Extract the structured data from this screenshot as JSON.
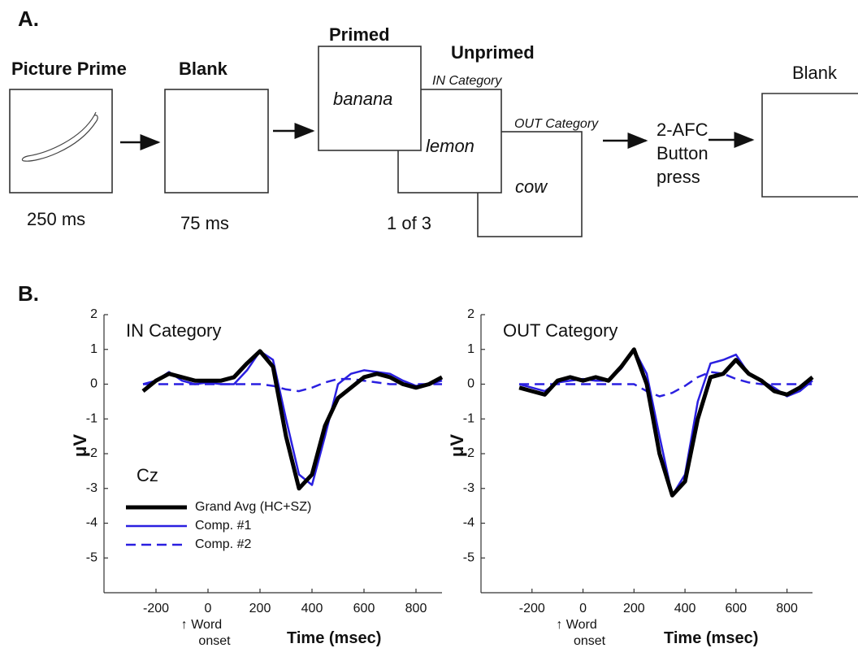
{
  "diagram": {
    "panel_a": "A.",
    "panel_b": "B.",
    "prime": {
      "title": "Picture Prime",
      "time": "250 ms"
    },
    "blank1": {
      "title": "Blank",
      "time": "75 ms"
    },
    "primed": {
      "title": "Primed",
      "word": "banana"
    },
    "unprimed": {
      "title": "Unprimed",
      "in_label": "IN Category",
      "in_word": "lemon",
      "out_label": "OUT Category",
      "out_word": "cow",
      "count": "1 of 3"
    },
    "response": [
      "2-AFC",
      "Button",
      "press"
    ],
    "blank2": {
      "title": "Blank"
    }
  },
  "chart_data": [
    {
      "type": "line",
      "title": "IN Category",
      "label": "Cz",
      "ylabel": "μV",
      "xlabel": "Time (msec)",
      "annotation": [
        "↑ Word",
        "onset"
      ],
      "legend": "lower left",
      "xlim": [
        -400,
        900
      ],
      "ylim": [
        -6,
        2
      ],
      "xticks": [
        -200,
        0,
        200,
        400,
        600,
        800
      ],
      "yticks": [
        2,
        1,
        0,
        -1,
        -2,
        -3,
        -4,
        -5
      ],
      "x": [
        -250,
        -200,
        -150,
        -100,
        -50,
        0,
        50,
        100,
        150,
        200,
        250,
        300,
        350,
        400,
        450,
        500,
        550,
        600,
        650,
        700,
        750,
        800,
        850,
        900
      ],
      "series": [
        {
          "name": "Grand Avg (HC+SZ)",
          "color": "#000000",
          "linestyle": "solid",
          "values": [
            -0.2,
            0.1,
            0.3,
            0.2,
            0.1,
            0.1,
            0.1,
            0.2,
            0.6,
            0.95,
            0.5,
            -1.5,
            -3.0,
            -2.6,
            -1.2,
            -0.4,
            -0.1,
            0.2,
            0.3,
            0.2,
            0.0,
            -0.1,
            0.0,
            0.2
          ]
        },
        {
          "name": "Comp. #1",
          "color": "#2a1fe0",
          "linestyle": "solid",
          "values": [
            0.0,
            0.1,
            0.35,
            0.1,
            0.0,
            0.05,
            0.0,
            0.0,
            0.4,
            0.95,
            0.7,
            -1.0,
            -2.6,
            -2.9,
            -1.5,
            0.0,
            0.3,
            0.4,
            0.35,
            0.3,
            0.1,
            -0.05,
            0.0,
            0.1
          ]
        },
        {
          "name": "Comp. #2",
          "color": "#2a1fe0",
          "linestyle": "dashed",
          "values": [
            0,
            0,
            0,
            0,
            0,
            0,
            0,
            0,
            0,
            0,
            -0.05,
            -0.15,
            -0.2,
            -0.1,
            0.05,
            0.15,
            0.15,
            0.1,
            0.05,
            0,
            0,
            0,
            0,
            0
          ]
        }
      ]
    },
    {
      "type": "line",
      "title": "OUT Category",
      "ylabel": "μV",
      "xlabel": "Time (msec)",
      "annotation": [
        "↑ Word",
        "onset"
      ],
      "xlim": [
        -400,
        900
      ],
      "ylim": [
        -6,
        2
      ],
      "xticks": [
        -200,
        0,
        200,
        400,
        600,
        800
      ],
      "yticks": [
        2,
        1,
        0,
        -1,
        -2,
        -3,
        -4,
        -5
      ],
      "x": [
        -250,
        -200,
        -150,
        -100,
        -50,
        0,
        50,
        100,
        150,
        200,
        250,
        300,
        350,
        400,
        450,
        500,
        550,
        600,
        650,
        700,
        750,
        800,
        850,
        900
      ],
      "series": [
        {
          "color": "#000000",
          "linestyle": "solid",
          "values": [
            -0.1,
            -0.2,
            -0.3,
            0.1,
            0.2,
            0.1,
            0.2,
            0.1,
            0.5,
            1.0,
            0.0,
            -2.0,
            -3.2,
            -2.8,
            -1.0,
            0.2,
            0.3,
            0.7,
            0.3,
            0.1,
            -0.2,
            -0.3,
            -0.1,
            0.2
          ]
        },
        {
          "color": "#2a1fe0",
          "linestyle": "solid",
          "values": [
            0.0,
            -0.1,
            -0.2,
            0.05,
            0.1,
            0.15,
            0.1,
            0.1,
            0.45,
            1.0,
            0.3,
            -1.5,
            -3.2,
            -2.6,
            -0.5,
            0.6,
            0.7,
            0.85,
            0.3,
            0.1,
            -0.1,
            -0.35,
            -0.2,
            0.1
          ]
        },
        {
          "color": "#2a1fe0",
          "linestyle": "dashed",
          "values": [
            0,
            0,
            0,
            0,
            0,
            0,
            0,
            0,
            0,
            0,
            -0.2,
            -0.35,
            -0.25,
            -0.05,
            0.2,
            0.35,
            0.3,
            0.15,
            0.05,
            0,
            0,
            0,
            0,
            0
          ]
        }
      ]
    }
  ]
}
